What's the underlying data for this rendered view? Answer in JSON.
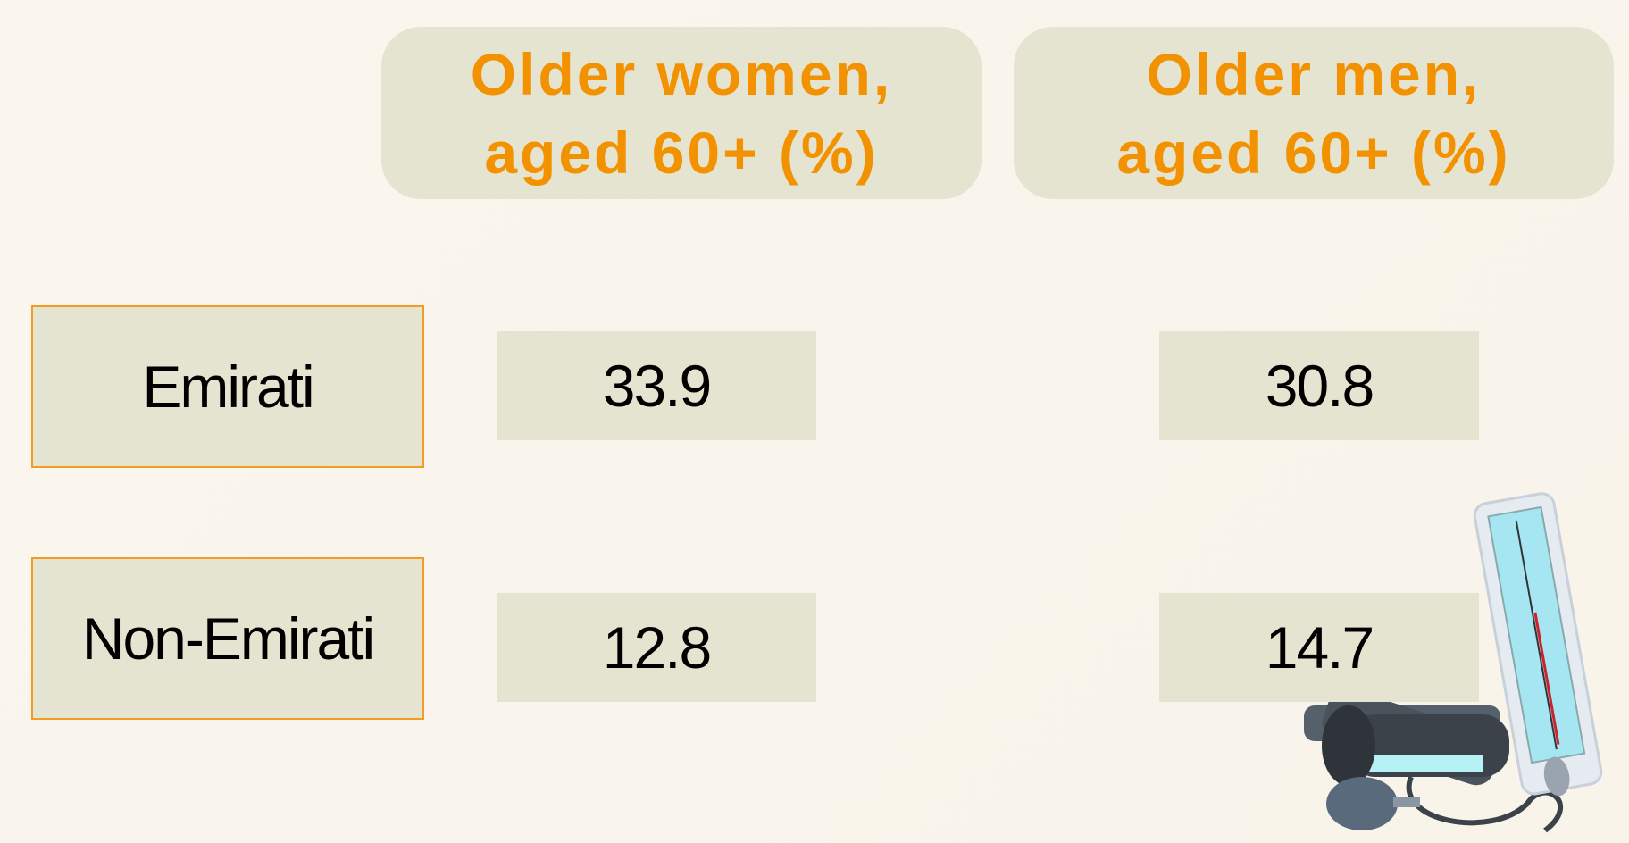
{
  "table": {
    "columns": [
      "Older women, aged 60+ (%)",
      "Older men, aged 60+ (%)"
    ],
    "rows": [
      {
        "label": "Emirati",
        "values": [
          33.9,
          30.8
        ]
      },
      {
        "label": "Non-Emirati",
        "values": [
          12.8,
          14.7
        ]
      }
    ]
  }
}
